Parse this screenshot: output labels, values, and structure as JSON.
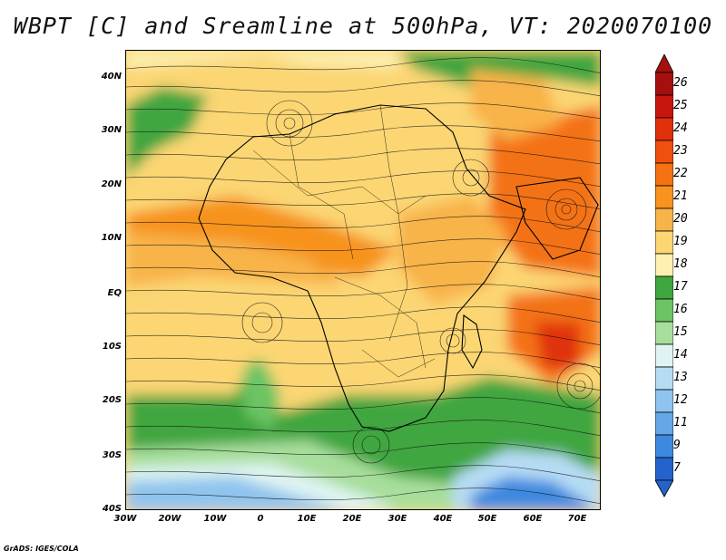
{
  "title": "WBPT [C] and Sreamline at 500hPa, VT: 2020070100",
  "footer": "GrADS: IGES/COLA",
  "map": {
    "y_labels": [
      "40N",
      "30N",
      "20N",
      "10N",
      "EQ",
      "10S",
      "20S",
      "30S",
      "40S"
    ],
    "x_labels": [
      "30W",
      "20W",
      "10W",
      "0",
      "10E",
      "20E",
      "30E",
      "40E",
      "50E",
      "60E",
      "70E"
    ]
  },
  "colorbar": {
    "labels": [
      "26",
      "25",
      "24",
      "23",
      "22",
      "21",
      "20",
      "19",
      "18",
      "17",
      "16",
      "15",
      "14",
      "13",
      "12",
      "11",
      "9",
      "7"
    ],
    "colors": [
      "#a50f0f",
      "#c8150e",
      "#e0300c",
      "#ef4f0f",
      "#f47212",
      "#f7931e",
      "#f8b34a",
      "#fbd673",
      "#fdf0b0",
      "#3fa640",
      "#6cc464",
      "#a8de9c",
      "#dff4f2",
      "#b6dcf4",
      "#8fc4ee",
      "#64a8e8",
      "#3e89e0",
      "#2563cc"
    ]
  }
}
